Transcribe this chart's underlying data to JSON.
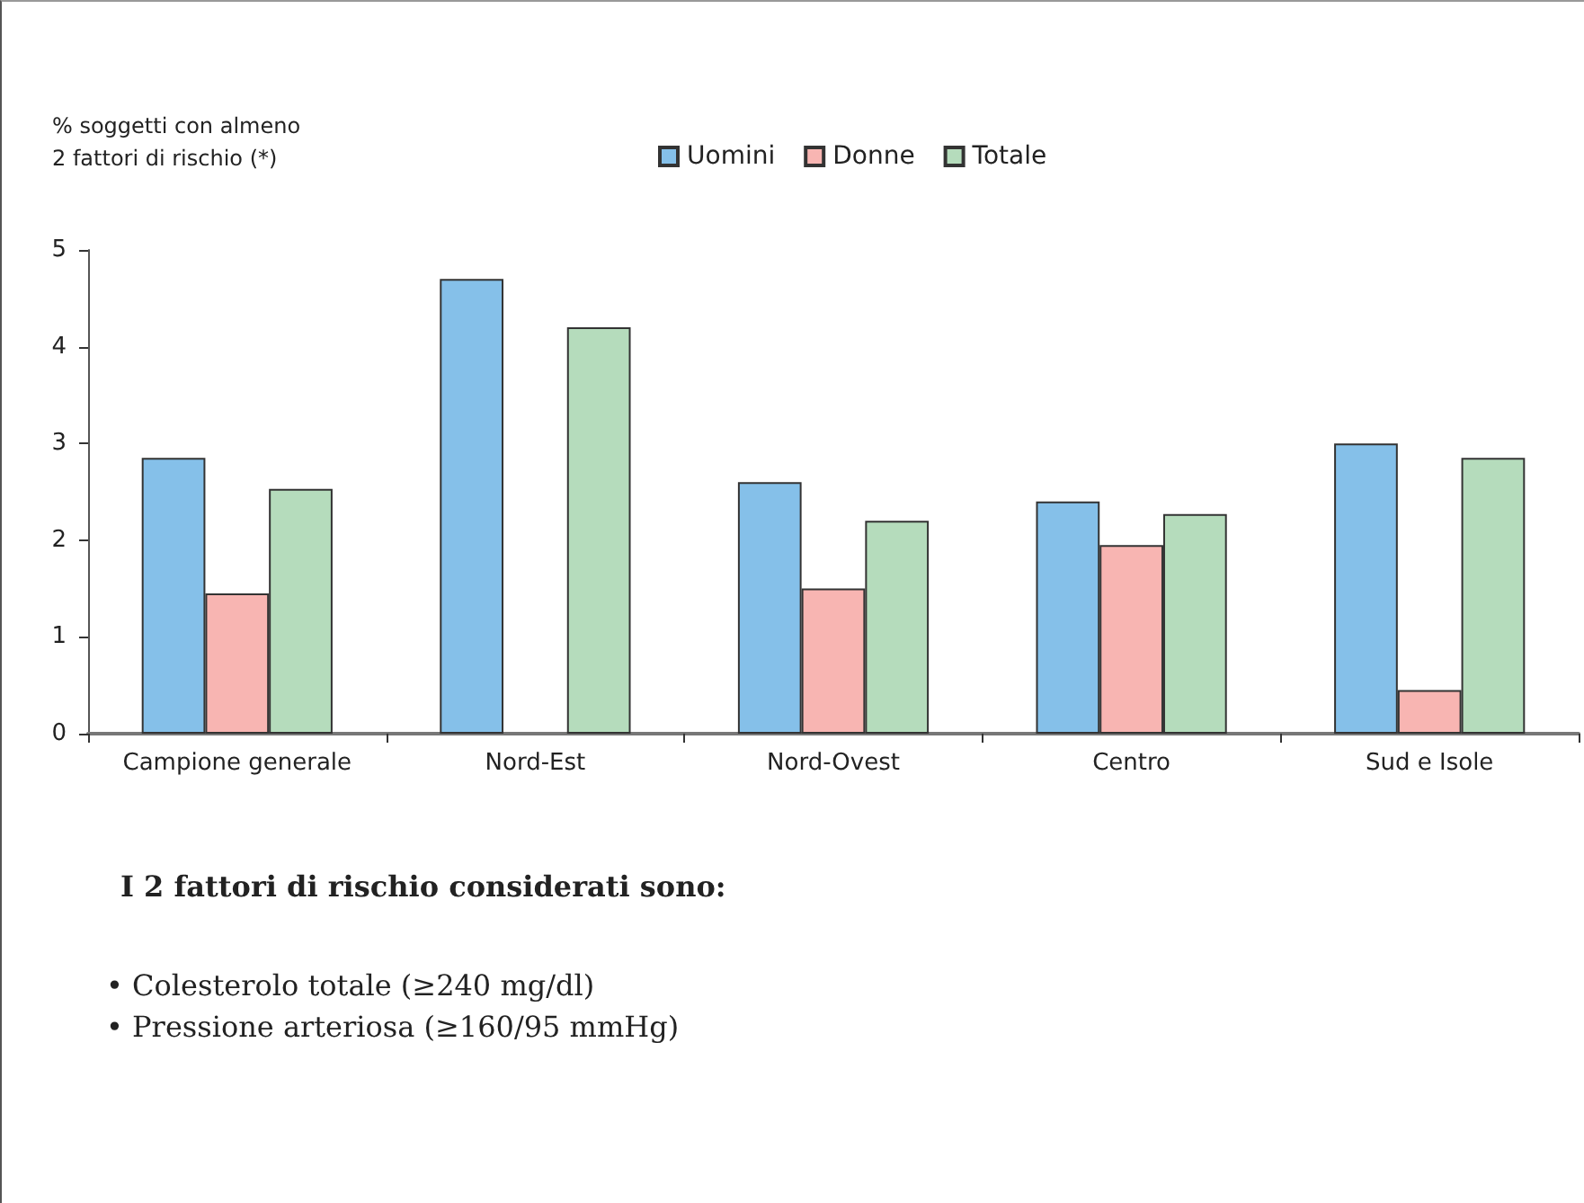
{
  "chart_data": {
    "type": "bar",
    "ylabel": "% soggetti con almeno\n2 fattori di rischio (*)",
    "categories": [
      "Campione generale",
      "Nord-Est",
      "Nord-Ovest",
      "Centro",
      "Sud e Isole"
    ],
    "series": [
      {
        "name": "Uomini",
        "color": "#85c0e9",
        "values": [
          2.85,
          4.7,
          2.6,
          2.4,
          3.0
        ]
      },
      {
        "name": "Donne",
        "color": "#f8b5b2",
        "values": [
          1.45,
          null,
          1.5,
          1.95,
          0.45
        ]
      },
      {
        "name": "Totale",
        "color": "#b5dcbc",
        "values": [
          2.53,
          4.2,
          2.2,
          2.27,
          2.85
        ]
      }
    ],
    "ylim": [
      0,
      5
    ],
    "yticks": [
      0,
      1,
      2,
      3,
      4,
      5
    ],
    "grid": false,
    "legend": "top",
    "annotations": [
      "I 2 fattori di rischio considerati sono:",
      "• Colesterolo totale (≥240 mg/dl)",
      "• Pressione arteriosa (≥160/95 mmHg)"
    ]
  }
}
